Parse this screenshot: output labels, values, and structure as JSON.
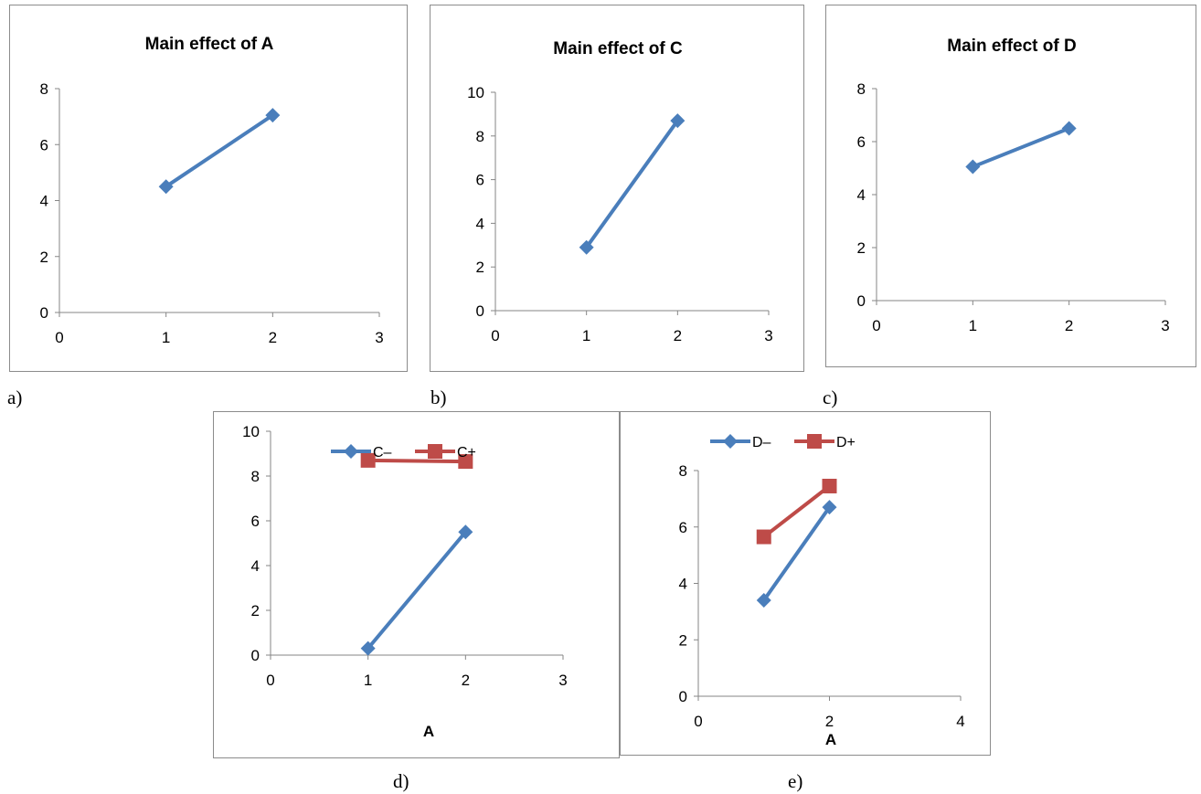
{
  "panel_labels": [
    "a)",
    "b)",
    "c)",
    "d)",
    "e)"
  ],
  "chart_data": [
    {
      "type": "line",
      "title": "Main effect of A",
      "xlabel": "",
      "ylabel": "",
      "xlim": [
        0,
        3
      ],
      "ylim": [
        0,
        8
      ],
      "xticks": [
        0,
        1,
        2,
        3
      ],
      "yticks": [
        0,
        2,
        4,
        6,
        8
      ],
      "grid": false,
      "legend": "none",
      "series": [
        {
          "name": "",
          "color": "#4a7ebb",
          "marker": "diamond",
          "x": [
            1,
            2
          ],
          "y": [
            4.5,
            7.05
          ]
        }
      ]
    },
    {
      "type": "line",
      "title": "Main effect of C",
      "xlabel": "",
      "ylabel": "",
      "xlim": [
        0,
        3
      ],
      "ylim": [
        0,
        10
      ],
      "xticks": [
        0,
        1,
        2,
        3
      ],
      "yticks": [
        0,
        2,
        4,
        6,
        8,
        10
      ],
      "grid": false,
      "legend": "none",
      "series": [
        {
          "name": "",
          "color": "#4a7ebb",
          "marker": "diamond",
          "x": [
            1,
            2
          ],
          "y": [
            2.9,
            8.7
          ]
        }
      ]
    },
    {
      "type": "line",
      "title": "Main effect of D",
      "xlabel": "",
      "ylabel": "",
      "xlim": [
        0,
        3
      ],
      "ylim": [
        0,
        8
      ],
      "xticks": [
        0,
        1,
        2,
        3
      ],
      "yticks": [
        0,
        2,
        4,
        6,
        8
      ],
      "grid": false,
      "legend": "none",
      "series": [
        {
          "name": "",
          "color": "#4a7ebb",
          "marker": "diamond",
          "x": [
            1,
            2
          ],
          "y": [
            5.05,
            6.5
          ]
        }
      ]
    },
    {
      "type": "line",
      "title": "",
      "xlabel": "A",
      "ylabel": "",
      "xlim": [
        0,
        3
      ],
      "ylim": [
        0,
        10
      ],
      "xticks": [
        0,
        1,
        2,
        3
      ],
      "yticks": [
        0,
        2,
        4,
        6,
        8,
        10
      ],
      "grid": false,
      "legend": "top",
      "series": [
        {
          "name": "C–",
          "color": "#4a7ebb",
          "marker": "diamond",
          "x": [
            1,
            2
          ],
          "y": [
            0.3,
            5.5
          ]
        },
        {
          "name": "C+",
          "color": "#be4b48",
          "marker": "square",
          "x": [
            1,
            2
          ],
          "y": [
            8.7,
            8.65
          ]
        }
      ]
    },
    {
      "type": "line",
      "title": "",
      "xlabel": "A",
      "ylabel": "",
      "xlim": [
        0,
        4
      ],
      "ylim": [
        0,
        8
      ],
      "xticks": [
        0,
        2,
        4
      ],
      "yticks": [
        0,
        2,
        4,
        6,
        8
      ],
      "grid": false,
      "legend": "top",
      "series": [
        {
          "name": "D–",
          "color": "#4a7ebb",
          "marker": "diamond",
          "x": [
            1,
            2
          ],
          "y": [
            3.4,
            6.7
          ]
        },
        {
          "name": "D+",
          "color": "#be4b48",
          "marker": "square",
          "x": [
            1,
            2
          ],
          "y": [
            5.65,
            7.45
          ]
        }
      ]
    }
  ]
}
